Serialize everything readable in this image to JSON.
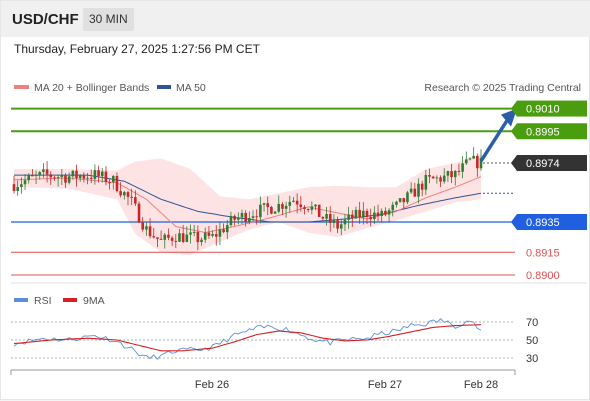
{
  "header": {
    "symbol": "USD/CHF",
    "timeframe": "30 MIN",
    "datetime": "Thursday, February 27, 2025 1:27:56 PM CET"
  },
  "colors": {
    "bollinger": "#f3a3a3",
    "band_fill": "#fde3e3",
    "ma20": "#f08080",
    "ma50": "#2f5597",
    "candle_up": "#2e7d32",
    "candle_down": "#c62828",
    "target_green": "#4a9d0e",
    "pivot_blue": "#1f5fe0",
    "support_red": "#e05050",
    "arrow": "#2a5ea8",
    "rsi_line": "#5b8fd6",
    "rsi_ma": "#d42020"
  },
  "chart_data": [
    {
      "type": "candlestick",
      "legend": [
        {
          "name": "MA 20 + Bollinger Bands",
          "color": "#f08080"
        },
        {
          "name": "MA 50",
          "color": "#2f5597"
        }
      ],
      "source": "Research © 2025 Trading Central",
      "current_price": 0.8974,
      "ylim": [
        0.8896,
        0.9015
      ],
      "levels": [
        {
          "value": "0.9010",
          "kind": "resistance-target"
        },
        {
          "value": "0.8995",
          "kind": "resistance-target"
        },
        {
          "value": "0.8974",
          "kind": "current"
        },
        {
          "value": "0.8935",
          "kind": "pivot"
        },
        {
          "value": "0.8915",
          "kind": "support"
        },
        {
          "value": "0.8900",
          "kind": "support"
        }
      ],
      "x_ticks": [
        "Feb 26",
        "Feb 27",
        "Feb 28"
      ],
      "anchors": [
        [
          0,
          0.896
        ],
        [
          8,
          0.8966
        ],
        [
          14,
          0.8965
        ],
        [
          22,
          0.8966
        ],
        [
          27,
          0.8962
        ],
        [
          32,
          0.8948
        ],
        [
          36,
          0.893
        ],
        [
          40,
          0.8922
        ],
        [
          44,
          0.8926
        ],
        [
          50,
          0.8924
        ],
        [
          54,
          0.8925
        ],
        [
          60,
          0.8937
        ],
        [
          66,
          0.8942
        ],
        [
          72,
          0.8946
        ],
        [
          76,
          0.895
        ],
        [
          80,
          0.8946
        ],
        [
          84,
          0.8938
        ],
        [
          88,
          0.8932
        ],
        [
          92,
          0.8938
        ],
        [
          96,
          0.8941
        ],
        [
          100,
          0.8939
        ],
        [
          104,
          0.8945
        ],
        [
          108,
          0.8953
        ],
        [
          112,
          0.8962
        ],
        [
          116,
          0.8964
        ],
        [
          120,
          0.8966
        ],
        [
          124,
          0.8975
        ],
        [
          127,
          0.8974
        ]
      ],
      "ma50_path": [
        [
          0,
          0.8966
        ],
        [
          20,
          0.8966
        ],
        [
          30,
          0.8962
        ],
        [
          40,
          0.895
        ],
        [
          50,
          0.8942
        ],
        [
          60,
          0.8938
        ],
        [
          70,
          0.8935
        ],
        [
          80,
          0.8935
        ],
        [
          90,
          0.8937
        ],
        [
          100,
          0.894
        ],
        [
          110,
          0.8946
        ],
        [
          120,
          0.8951
        ],
        [
          127,
          0.8954
        ]
      ],
      "bollinger_upper": [
        [
          0,
          0.897
        ],
        [
          15,
          0.897
        ],
        [
          28,
          0.8969
        ],
        [
          33,
          0.8975
        ],
        [
          40,
          0.8977
        ],
        [
          48,
          0.897
        ],
        [
          56,
          0.8952
        ],
        [
          64,
          0.895
        ],
        [
          72,
          0.8954
        ],
        [
          80,
          0.8958
        ],
        [
          88,
          0.8959
        ],
        [
          96,
          0.8958
        ],
        [
          104,
          0.8958
        ],
        [
          112,
          0.897
        ],
        [
          120,
          0.8974
        ],
        [
          127,
          0.898
        ]
      ],
      "bollinger_lower": [
        [
          0,
          0.8958
        ],
        [
          15,
          0.8957
        ],
        [
          28,
          0.895
        ],
        [
          33,
          0.8927
        ],
        [
          40,
          0.8915
        ],
        [
          48,
          0.8913
        ],
        [
          56,
          0.8922
        ],
        [
          64,
          0.893
        ],
        [
          72,
          0.8935
        ],
        [
          80,
          0.8928
        ],
        [
          88,
          0.8925
        ],
        [
          96,
          0.8931
        ],
        [
          104,
          0.8936
        ],
        [
          112,
          0.8942
        ],
        [
          120,
          0.8948
        ],
        [
          127,
          0.895
        ]
      ],
      "ma20_path": [
        [
          0,
          0.8963
        ],
        [
          15,
          0.8964
        ],
        [
          28,
          0.8961
        ],
        [
          36,
          0.895
        ],
        [
          44,
          0.8932
        ],
        [
          52,
          0.8928
        ],
        [
          60,
          0.8932
        ],
        [
          70,
          0.8938
        ],
        [
          80,
          0.8945
        ],
        [
          88,
          0.8941
        ],
        [
          96,
          0.8937
        ],
        [
          104,
          0.8942
        ],
        [
          112,
          0.8951
        ],
        [
          120,
          0.8958
        ],
        [
          127,
          0.8965
        ]
      ]
    },
    {
      "type": "line",
      "legend": [
        {
          "name": "RSI",
          "color": "#5b8fd6"
        },
        {
          "name": "9MA",
          "color": "#d42020"
        }
      ],
      "ylim": [
        20,
        80
      ],
      "ticks": [
        "70",
        "50",
        "30"
      ],
      "rsi": [
        [
          0,
          46
        ],
        [
          8,
          52
        ],
        [
          14,
          50
        ],
        [
          22,
          55
        ],
        [
          27,
          50
        ],
        [
          32,
          40
        ],
        [
          36,
          30
        ],
        [
          40,
          32
        ],
        [
          44,
          38
        ],
        [
          50,
          39
        ],
        [
          54,
          42
        ],
        [
          60,
          55
        ],
        [
          66,
          63
        ],
        [
          70,
          65
        ],
        [
          74,
          62
        ],
        [
          78,
          56
        ],
        [
          82,
          50
        ],
        [
          86,
          47
        ],
        [
          90,
          50
        ],
        [
          96,
          52
        ],
        [
          100,
          57
        ],
        [
          104,
          60
        ],
        [
          108,
          66
        ],
        [
          112,
          68
        ],
        [
          116,
          72
        ],
        [
          120,
          66
        ],
        [
          124,
          72
        ],
        [
          127,
          60
        ]
      ],
      "rsi_ma": [
        [
          0,
          46
        ],
        [
          10,
          50
        ],
        [
          20,
          52
        ],
        [
          28,
          50
        ],
        [
          34,
          44
        ],
        [
          40,
          38
        ],
        [
          46,
          38
        ],
        [
          54,
          41
        ],
        [
          60,
          48
        ],
        [
          66,
          56
        ],
        [
          72,
          60
        ],
        [
          78,
          58
        ],
        [
          84,
          52
        ],
        [
          90,
          49
        ],
        [
          96,
          50
        ],
        [
          102,
          54
        ],
        [
          108,
          59
        ],
        [
          114,
          64
        ],
        [
          120,
          66
        ],
        [
          127,
          67
        ]
      ]
    }
  ]
}
